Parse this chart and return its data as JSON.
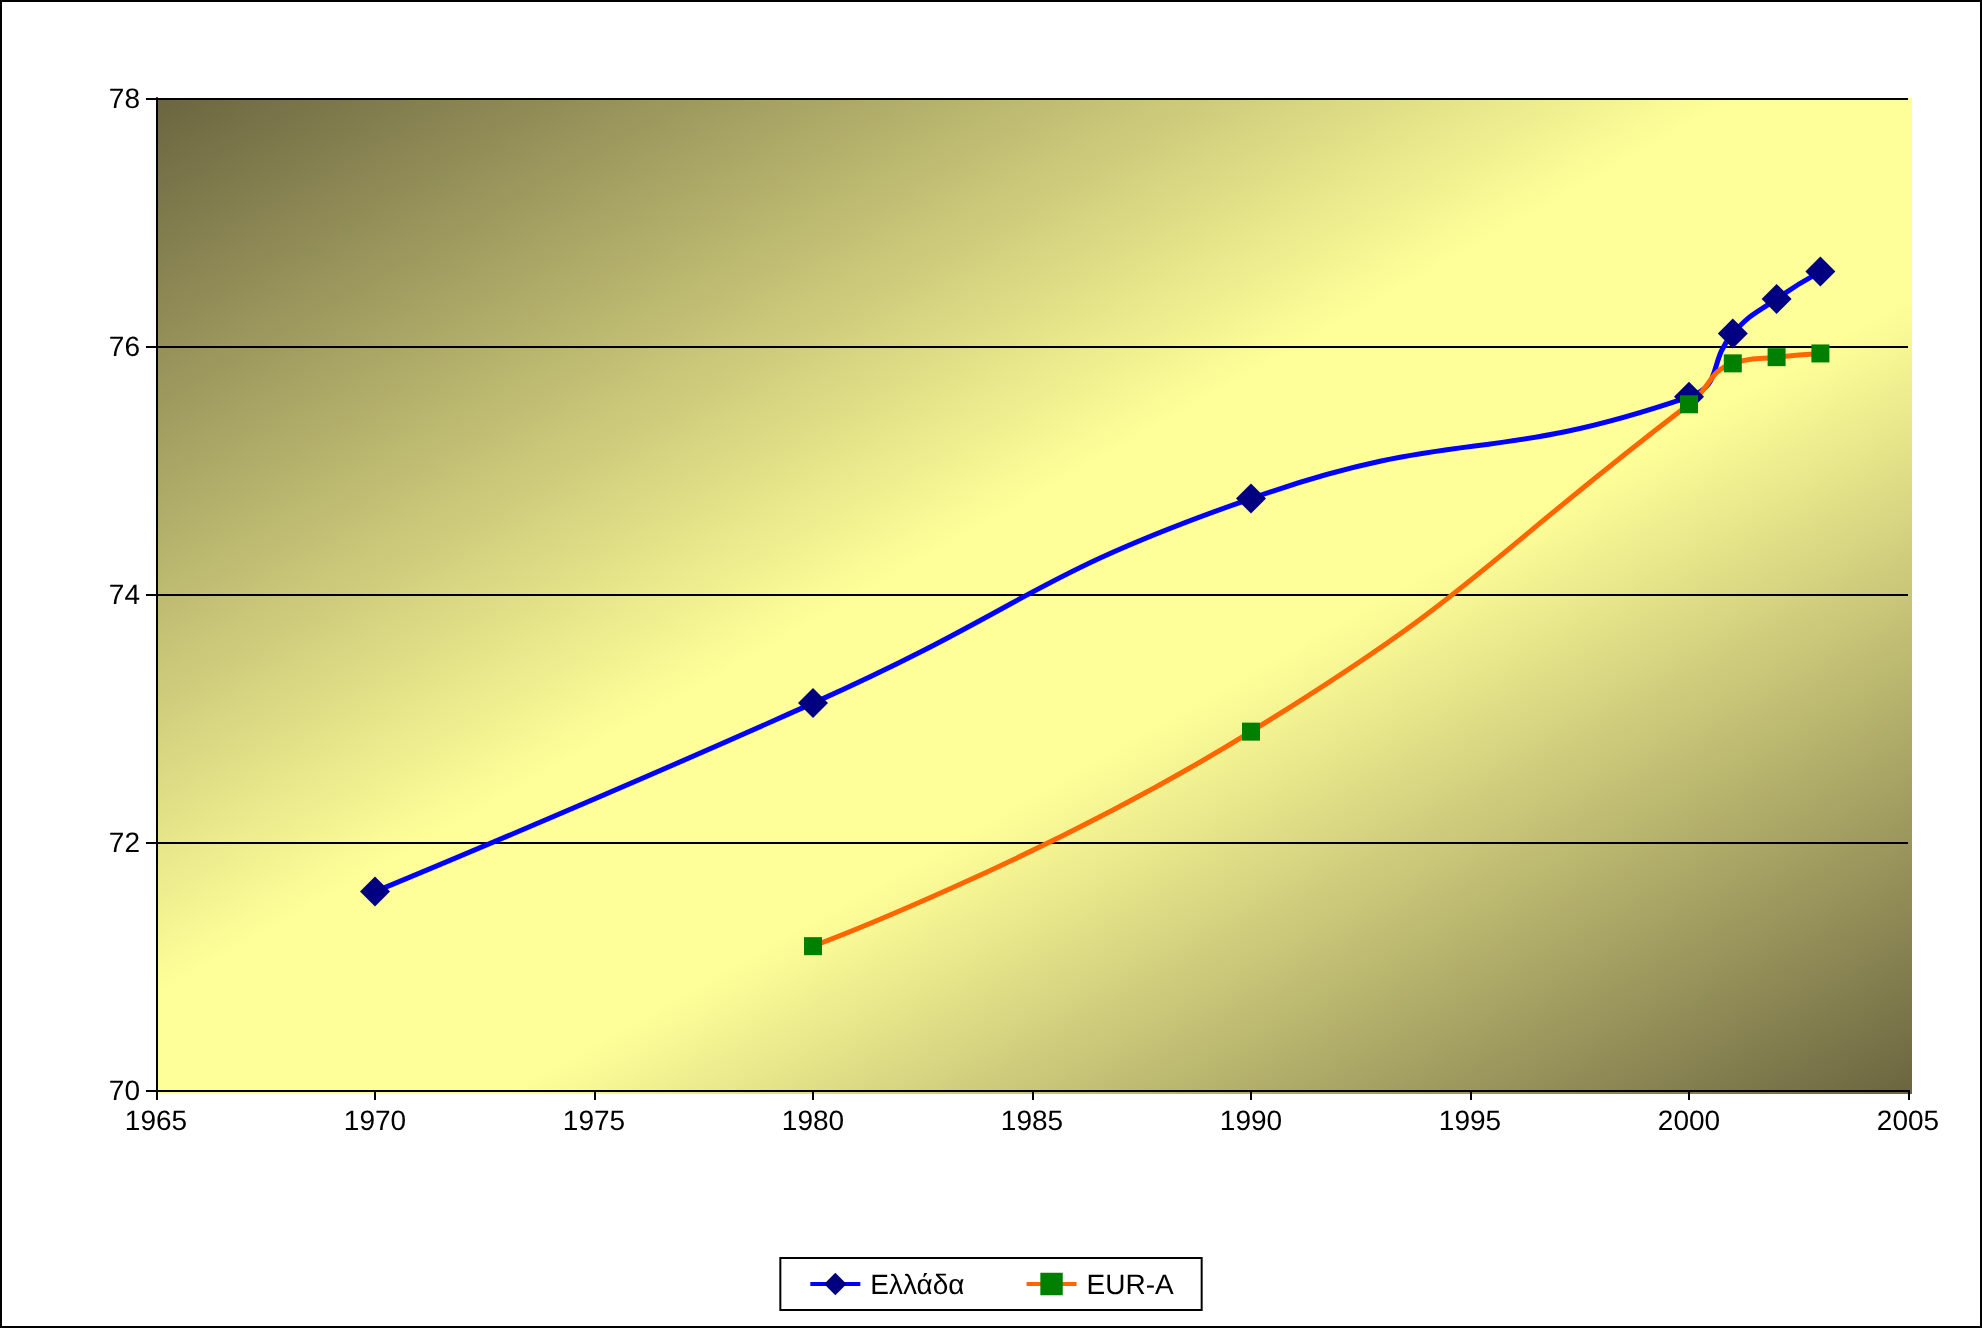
{
  "chart_data": {
    "type": "line",
    "x": [
      1970,
      1980,
      1990,
      2000,
      2001,
      2002,
      2003
    ],
    "series": [
      {
        "name": "Ελλάδα",
        "color": "#0000ff",
        "marker": "diamond",
        "values": [
          71.6,
          73.12,
          74.77,
          75.59,
          76.1,
          76.38,
          76.6
        ]
      },
      {
        "name": "EUR-A",
        "color": "#ff6600",
        "marker": "square",
        "x": [
          1980,
          1990,
          2000,
          2001,
          2002,
          2003
        ],
        "values": [
          71.16,
          72.89,
          75.53,
          75.86,
          75.91,
          75.94
        ]
      }
    ],
    "xlim": [
      1965,
      2005
    ],
    "xticks": [
      1965,
      1970,
      1975,
      1980,
      1985,
      1990,
      1995,
      2000,
      2005
    ],
    "ylim": [
      70,
      78
    ],
    "yticks": [
      70,
      72,
      74,
      76,
      78
    ],
    "grid": "y",
    "legend": "bottom"
  }
}
